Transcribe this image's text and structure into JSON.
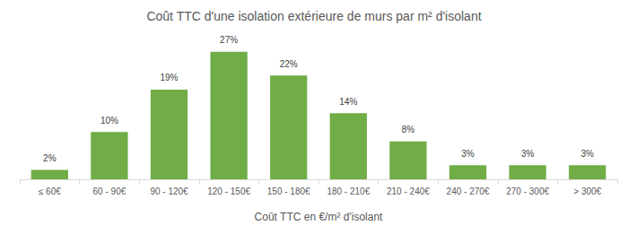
{
  "chart_data": {
    "type": "bar",
    "title": "Coût TTC d'une isolation extérieure de murs par m² d'isolant",
    "xlabel": "Coût TTC en €/m² d'isolant",
    "categories": [
      "≤ 60€",
      "60 - 90€",
      "90 - 120€",
      "120 - 150€",
      "150 - 180€",
      "180 - 210€",
      "210 - 240€",
      "240 - 270€",
      "270 - 300€",
      "> 300€"
    ],
    "values": [
      2,
      10,
      19,
      27,
      22,
      14,
      8,
      3,
      3,
      3
    ],
    "value_labels": [
      "2%",
      "10%",
      "19%",
      "27%",
      "22%",
      "14%",
      "8%",
      "3%",
      "3%",
      "3%"
    ],
    "color": "#70ad47",
    "data_labels": true,
    "tick_labels": "x",
    "grid": false
  }
}
